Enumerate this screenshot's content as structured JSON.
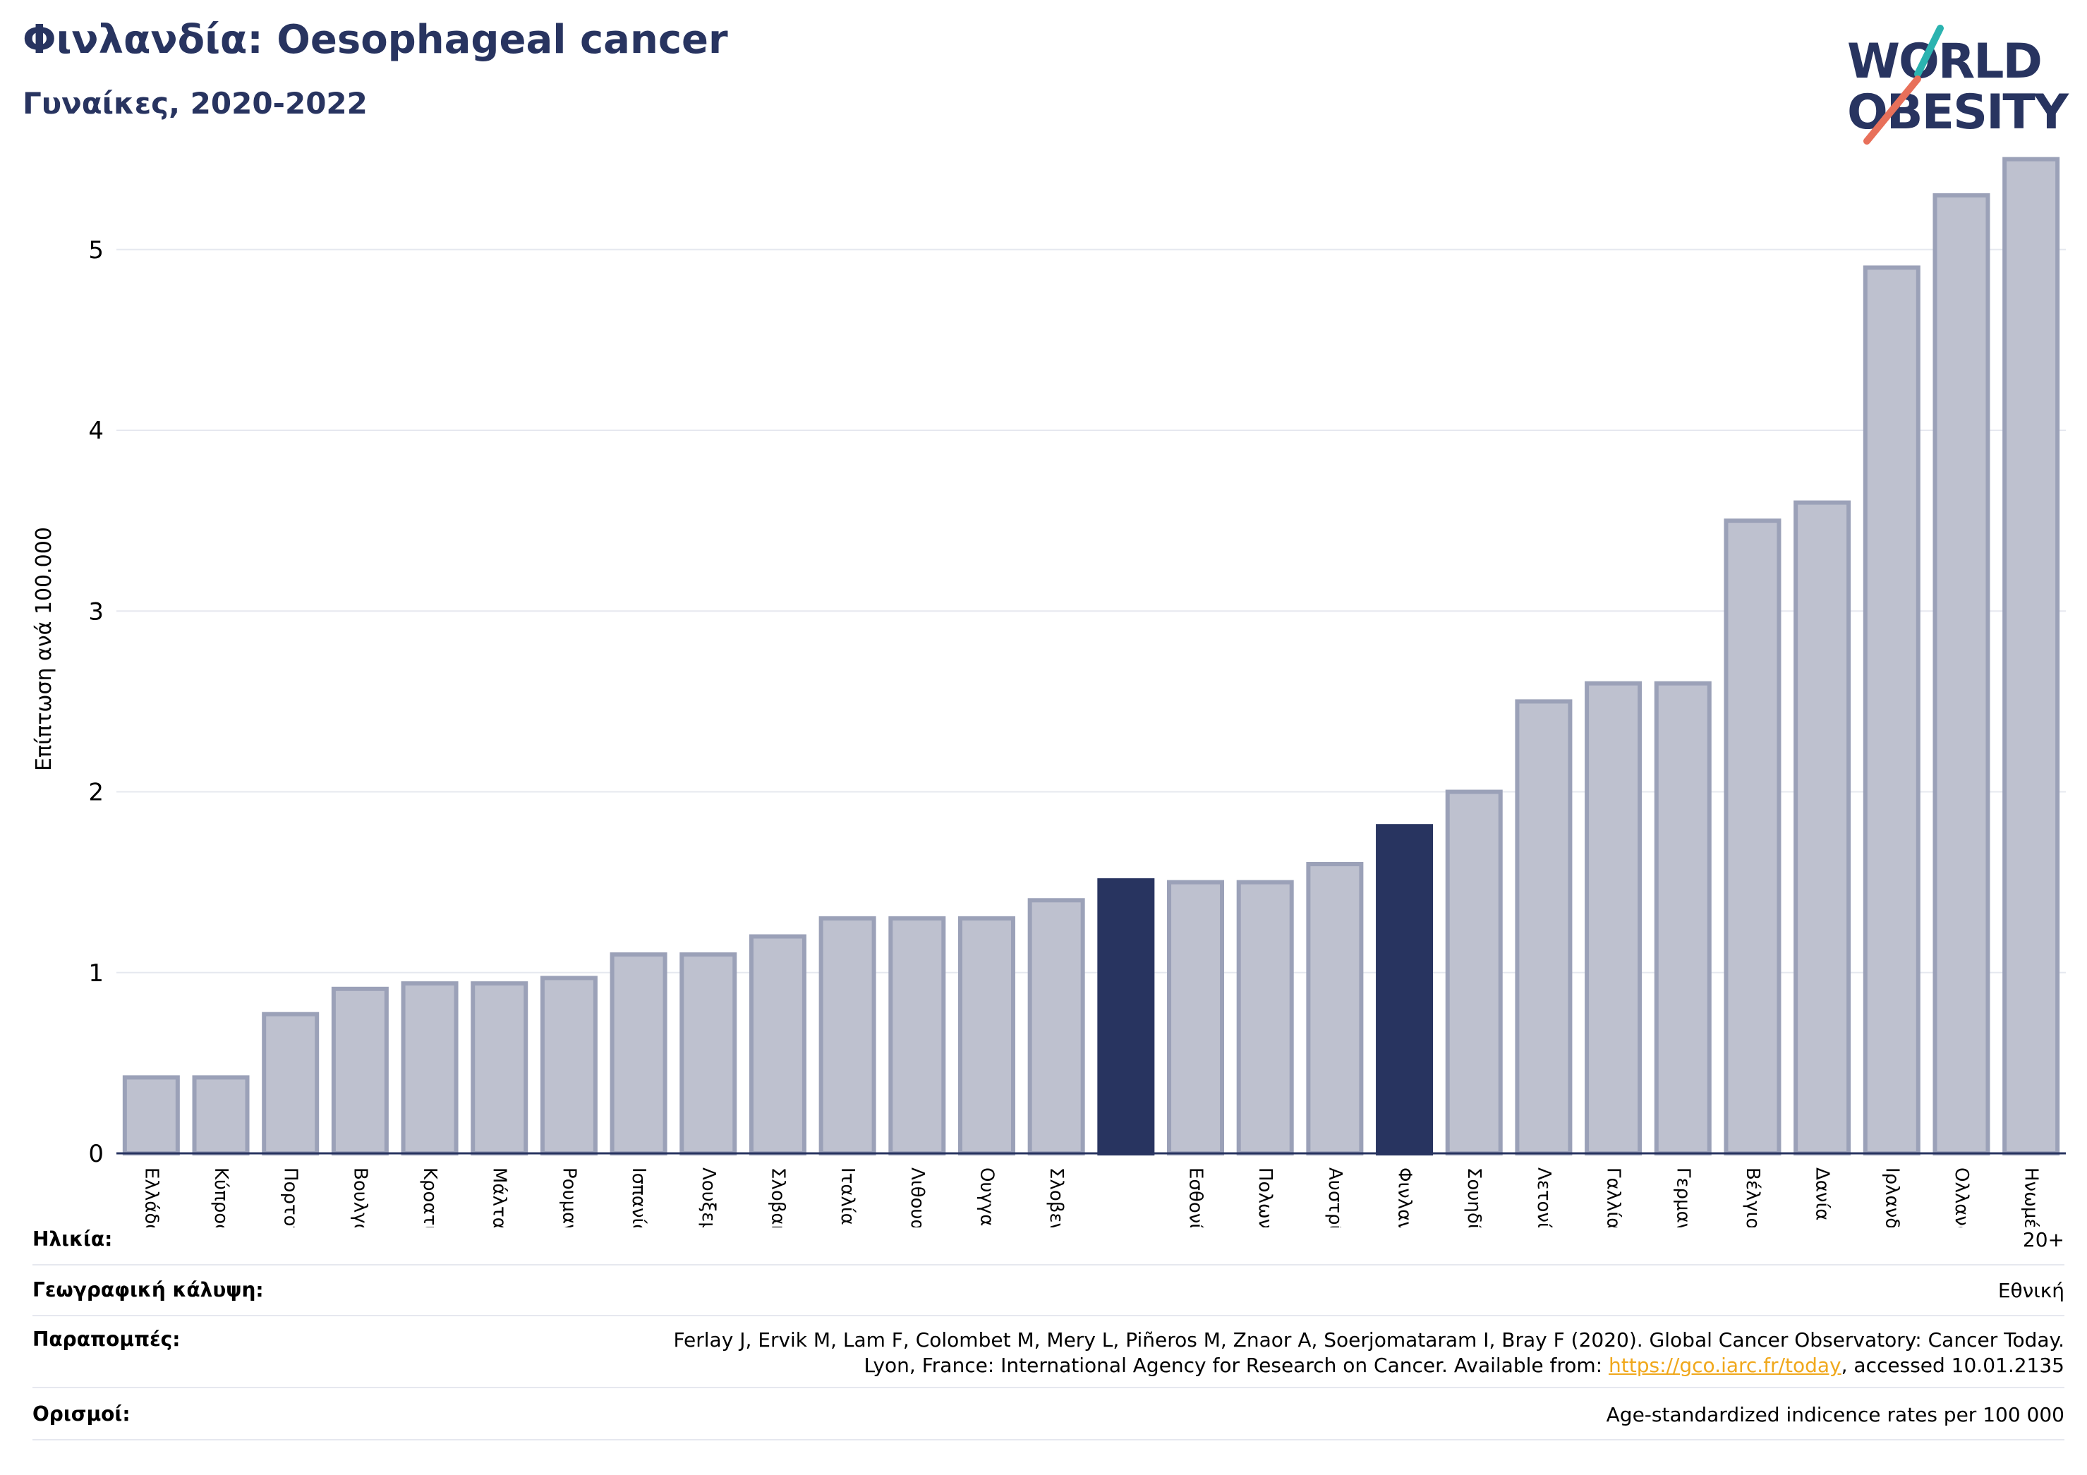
{
  "header": {
    "title": "Φινλανδία: Oesophageal cancer",
    "subtitle": "Γυναίκες, 2020-2022"
  },
  "logo": {
    "line1": "WORLD",
    "line2": "OBESITY",
    "accent_teal": "#2bb3b0",
    "accent_coral": "#e8705a",
    "text_color": "#283460"
  },
  "colors": {
    "bar_fill": "#bec1cf",
    "bar_stroke": "#9ba1b8",
    "highlight": "#283460",
    "grid": "#e6e8ef",
    "axis": "#283460"
  },
  "chart_data": {
    "type": "bar",
    "title": "",
    "xlabel": "",
    "ylabel": "Επίπτωση ανά 100.000",
    "ylim": [
      0,
      5.6
    ],
    "yticks": [
      0,
      1,
      2,
      3,
      4,
      5
    ],
    "grid": true,
    "categories": [
      "Ελλάδα",
      "Κύπρος",
      "Πορτογαλία",
      "Βουλγαρία",
      "Κροατία",
      "Μάλτα",
      "Ρουμανία",
      "Ισπανία",
      "Λουξεμβούργο",
      "Σλοβακία",
      "Ιταλία",
      "Λιθουανία",
      "Ουγγαρία",
      "Σλοβενία",
      "",
      "Εσθονία",
      "Πολωνία",
      "Αυστρία",
      "Φινλανδία",
      "Σουηδία",
      "Λετονία",
      "Γαλλία",
      "Γερμανία",
      "Βέλγιο",
      "Δανία",
      "Ιρλανδία",
      "Ολλανδία",
      "Ηνωμένο Βασίλειο"
    ],
    "values": [
      0.42,
      0.42,
      0.77,
      0.91,
      0.94,
      0.94,
      0.97,
      1.1,
      1.1,
      1.2,
      1.3,
      1.3,
      1.3,
      1.4,
      1.51,
      1.5,
      1.5,
      1.6,
      1.81,
      2.0,
      2.5,
      2.6,
      2.6,
      3.5,
      3.6,
      4.9,
      5.3,
      5.5
    ],
    "highlighted": [
      14,
      18
    ]
  },
  "info": {
    "age_label": "Ηλικία:",
    "age_value": "20+",
    "geo_label": "Γεωγραφική κάλυψη:",
    "geo_value": "Εθνική",
    "ref_label": "Παραπομπές:",
    "ref_line1": "Ferlay J, Ervik M, Lam F, Colombet M, Mery L, Piñeros M, Znaor A, Soerjomataram I, Bray F (2020). Global Cancer Observatory: Cancer Today.",
    "ref_line2_pre": "Lyon, France: International Agency for Research on Cancer. Available from: ",
    "ref_link": "https://gco.iarc.fr/today",
    "ref_line2_post": ", accessed 10.01.2135",
    "def_label": "Ορισμοί:",
    "def_value": "Age-standardized indicence rates per 100 000"
  }
}
